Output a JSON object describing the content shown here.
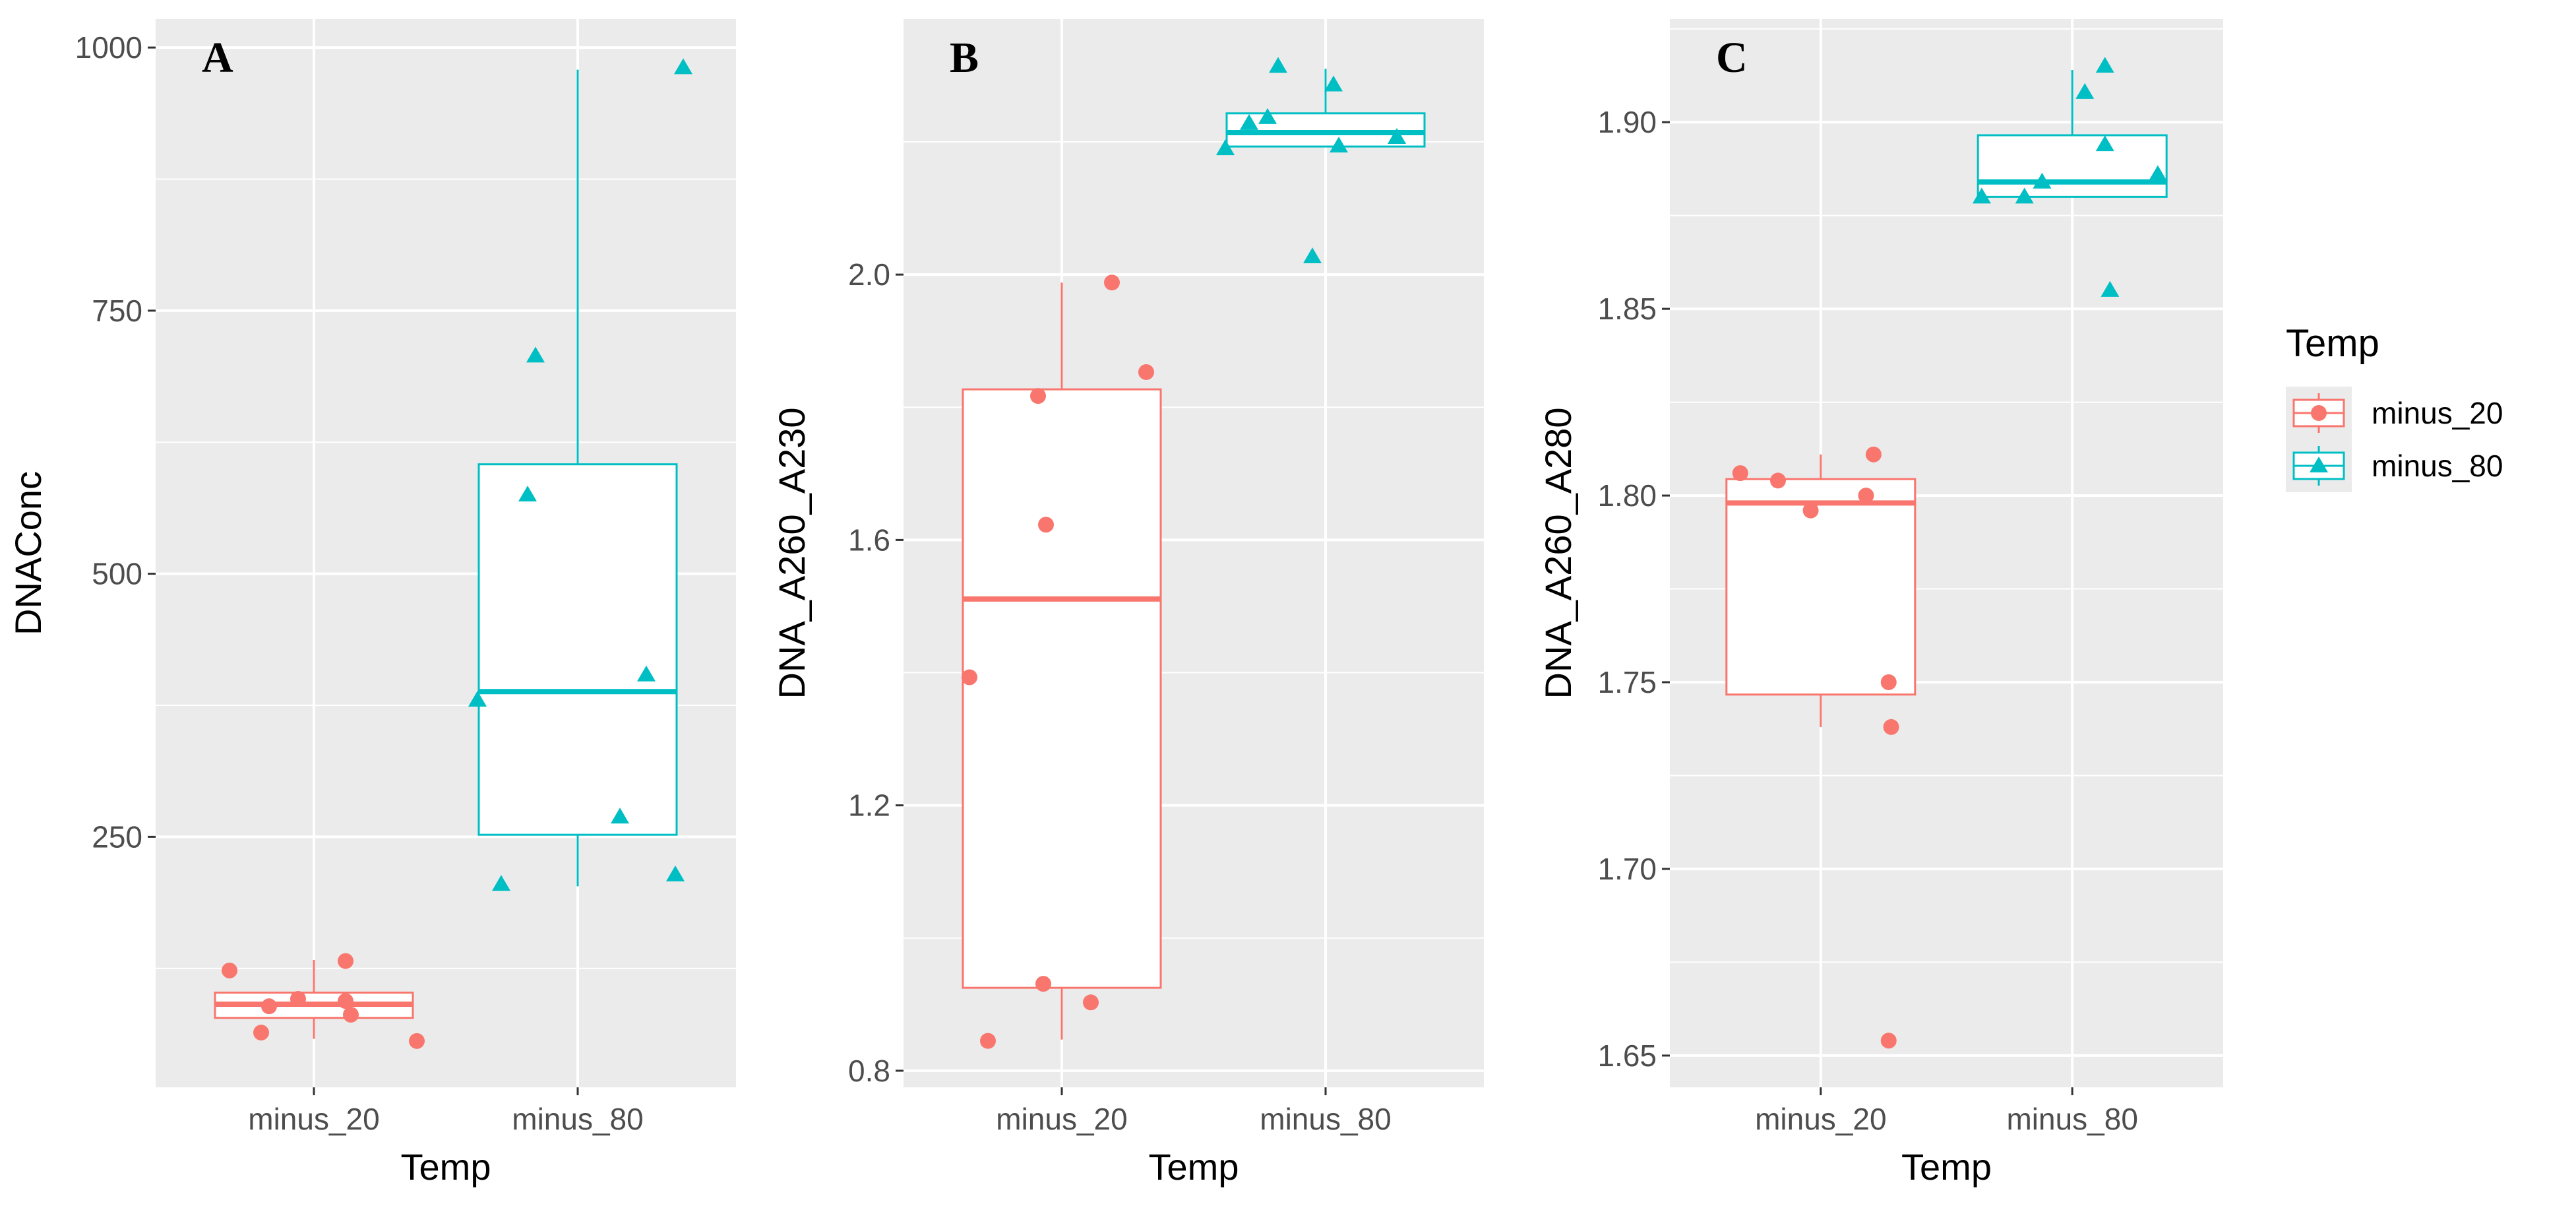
{
  "chart_data": [
    {
      "type": "boxplot",
      "panel_label": "A",
      "xlabel": "Temp",
      "ylabel": "DNAConc",
      "categories": [
        "minus_20",
        "minus_80"
      ],
      "ylim": [
        12,
        1027
      ],
      "yticks": [
        250,
        500,
        750,
        1000
      ],
      "ytick_labels": [
        "250",
        "500",
        "750",
        "1000"
      ],
      "grid": true,
      "boxes": [
        {
          "group": "minus_20",
          "lower_whisker": 58,
          "q1": 78,
          "median": 91,
          "q3": 102,
          "upper_whisker": 133
        },
        {
          "group": "minus_80",
          "lower_whisker": 203,
          "q1": 252,
          "median": 388,
          "q3": 604,
          "upper_whisker": 979
        }
      ],
      "points": [
        {
          "group": "minus_20",
          "x": [
            0.68,
            1.12,
            0.83,
            0.94,
            1.12,
            1.14,
            0.8,
            1.39
          ],
          "y": [
            123,
            132,
            89,
            96,
            94,
            81,
            64,
            56
          ]
        },
        {
          "group": "minus_80",
          "x": [
            2.4,
            1.84,
            1.81,
            2.26,
            1.62,
            2.16,
            1.71,
            2.37
          ],
          "y": [
            981,
            707,
            575,
            404,
            380,
            269,
            205,
            214
          ]
        }
      ]
    },
    {
      "type": "boxplot",
      "panel_label": "B",
      "xlabel": "Temp",
      "ylabel": "DNA_A260_A230",
      "categories": [
        "minus_20",
        "minus_80"
      ],
      "ylim": [
        0.775,
        2.385
      ],
      "yticks": [
        0.8,
        1.2,
        1.6,
        2.0
      ],
      "ytick_labels": [
        "0.8",
        "1.2",
        "1.6",
        "2.0"
      ],
      "grid": true,
      "boxes": [
        {
          "group": "minus_20",
          "lower_whisker": 0.847,
          "q1": 0.925,
          "median": 1.511,
          "q3": 1.827,
          "upper_whisker": 1.988
        },
        {
          "group": "minus_80",
          "lower_whisker": 2.193,
          "q1": 2.193,
          "median": 2.214,
          "q3": 2.243,
          "upper_whisker": 2.31
        }
      ],
      "points": [
        {
          "group": "minus_20",
          "x": [
            1.19,
            1.32,
            0.91,
            0.94,
            0.65,
            0.93,
            1.11,
            0.72
          ],
          "y": [
            1.988,
            1.853,
            1.817,
            1.623,
            1.393,
            0.931,
            0.903,
            0.845
          ]
        },
        {
          "group": "minus_80",
          "x": [
            1.82,
            2.03,
            1.78,
            1.71,
            1.62,
            2.05,
            2.27,
            1.95
          ],
          "y": [
            2.314,
            2.286,
            2.237,
            2.228,
            2.19,
            2.194,
            2.207,
            2.027
          ]
        }
      ]
    },
    {
      "type": "boxplot",
      "panel_label": "C",
      "xlabel": "Temp",
      "ylabel": "DNA_A260_A280",
      "categories": [
        "minus_20",
        "minus_80"
      ],
      "ylim": [
        1.6415,
        1.9276
      ],
      "yticks": [
        1.65,
        1.7,
        1.75,
        1.8,
        1.85,
        1.9
      ],
      "ytick_labels": [
        "1.65",
        "1.70",
        "1.75",
        "1.80",
        "1.85",
        "1.90"
      ],
      "grid": true,
      "boxes": [
        {
          "group": "minus_20",
          "lower_whisker": 1.738,
          "q1": 1.7467,
          "median": 1.798,
          "q3": 1.8044,
          "upper_whisker": 1.811
        },
        {
          "group": "minus_80",
          "lower_whisker": 1.88,
          "q1": 1.88,
          "median": 1.884,
          "q3": 1.8965,
          "upper_whisker": 1.914
        }
      ],
      "points": [
        {
          "group": "minus_20",
          "x": [
            1.21,
            0.68,
            0.83,
            1.18,
            0.96,
            1.27,
            1.28,
            1.27
          ],
          "y": [
            1.811,
            1.806,
            1.804,
            1.8,
            1.796,
            1.75,
            1.738,
            1.654
          ]
        },
        {
          "group": "minus_80",
          "x": [
            2.13,
            2.05,
            2.13,
            2.34,
            1.88,
            1.64,
            1.81,
            2.15
          ],
          "y": [
            1.915,
            1.908,
            1.894,
            1.886,
            1.884,
            1.88,
            1.88,
            1.855
          ]
        }
      ]
    }
  ],
  "legend": {
    "title": "Temp",
    "placement": "right",
    "entries": [
      {
        "label": "minus_20",
        "color": "#F8766D",
        "shape": "circle"
      },
      {
        "label": "minus_80",
        "color": "#00BFC4",
        "shape": "triangle"
      }
    ]
  },
  "colors": {
    "minus_20": "#F8766D",
    "minus_80": "#00BFC4",
    "panel_bg": "#EBEBEB",
    "grid": "#FFFFFF"
  }
}
